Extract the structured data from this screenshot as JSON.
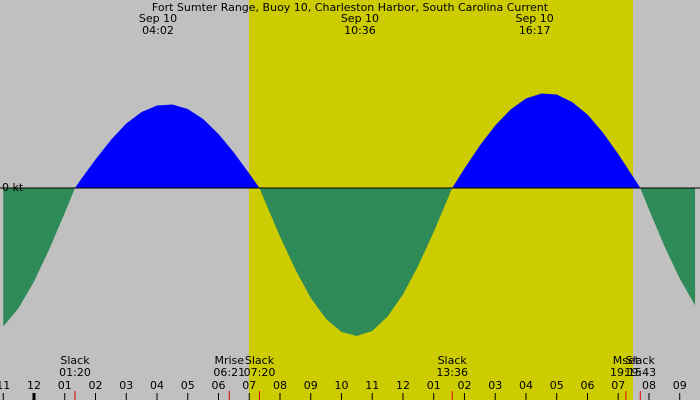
{
  "chart_data": {
    "type": "area",
    "title": "Fort Sumter Range, Buoy 10, Charleston Harbor, South Carolina Current",
    "x": [
      -1,
      -0.5,
      0,
      0.5,
      1,
      1.333,
      1.5,
      2,
      2.5,
      3,
      3.5,
      4,
      4.5,
      5,
      5.5,
      6,
      6.5,
      7,
      7.333,
      7.5,
      8,
      8.5,
      9,
      9.5,
      10,
      10.5,
      11,
      11.5,
      12,
      12.5,
      13,
      13.5,
      13.6,
      14,
      14.5,
      15,
      15.5,
      16,
      16.5,
      17,
      17.5,
      18,
      18.5,
      19,
      19.5,
      19.717,
      20,
      20.5,
      21,
      21.5
    ],
    "values": [
      -2.77,
      -2.4,
      -1.87,
      -1.22,
      -0.5,
      0,
      0.15,
      0.57,
      0.96,
      1.29,
      1.52,
      1.65,
      1.67,
      1.58,
      1.38,
      1.08,
      0.71,
      0.29,
      0,
      -0.25,
      -0.97,
      -1.63,
      -2.2,
      -2.62,
      -2.88,
      -2.96,
      -2.86,
      -2.57,
      -2.13,
      -1.55,
      -0.88,
      -0.15,
      0,
      0.39,
      0.85,
      1.25,
      1.57,
      1.79,
      1.89,
      1.87,
      1.72,
      1.47,
      1.11,
      0.68,
      0.21,
      0,
      -0.43,
      -1.16,
      -1.81,
      -2.35
    ],
    "flood_color": "#0000ff",
    "ebb_color": "#2e8b57",
    "background_color": "#c0c0c0",
    "daylight_color": "#cccc00",
    "daylight": [
      6.99,
      19.48
    ],
    "xlim": [
      -1.106,
      21.66
    ],
    "ylim": [
      -4.24,
      3.76
    ],
    "yticks": [
      {
        "value": 0,
        "label": "0 kt"
      }
    ],
    "xticks": [
      {
        "value": -1,
        "label": "11"
      },
      {
        "value": 0,
        "label": "12"
      },
      {
        "value": 1,
        "label": "01"
      },
      {
        "value": 2,
        "label": "02"
      },
      {
        "value": 3,
        "label": "03"
      },
      {
        "value": 4,
        "label": "04"
      },
      {
        "value": 5,
        "label": "05"
      },
      {
        "value": 6,
        "label": "06"
      },
      {
        "value": 7,
        "label": "07"
      },
      {
        "value": 8,
        "label": "08"
      },
      {
        "value": 9,
        "label": "09"
      },
      {
        "value": 10,
        "label": "10"
      },
      {
        "value": 11,
        "label": "11"
      },
      {
        "value": 12,
        "label": "12"
      },
      {
        "value": 13,
        "label": "01"
      },
      {
        "value": 14,
        "label": "02"
      },
      {
        "value": 15,
        "label": "03"
      },
      {
        "value": 16,
        "label": "04"
      },
      {
        "value": 17,
        "label": "05"
      },
      {
        "value": 18,
        "label": "06"
      },
      {
        "value": 19,
        "label": "07"
      },
      {
        "value": 20,
        "label": "08"
      },
      {
        "value": 21,
        "label": "09"
      }
    ],
    "extremes": [
      {
        "date": "Sep 10",
        "time": "04:02",
        "x": 4.033
      },
      {
        "date": "Sep 10",
        "time": "10:36",
        "x": 10.6
      },
      {
        "date": "Sep 10",
        "time": "16:17",
        "x": 16.283
      }
    ],
    "events": [
      {
        "name": "Slack",
        "time": "01:20",
        "x": 1.333
      },
      {
        "name": "Mrise",
        "time": "06:21",
        "x": 6.35
      },
      {
        "name": "Slack",
        "time": "07:20",
        "x": 7.333
      },
      {
        "name": "Slack",
        "time": "13:36",
        "x": 13.6
      },
      {
        "name": "Mset",
        "time": "19:15",
        "x": 19.25
      },
      {
        "name": "Slack",
        "time": "19:43",
        "x": 19.717
      }
    ]
  }
}
